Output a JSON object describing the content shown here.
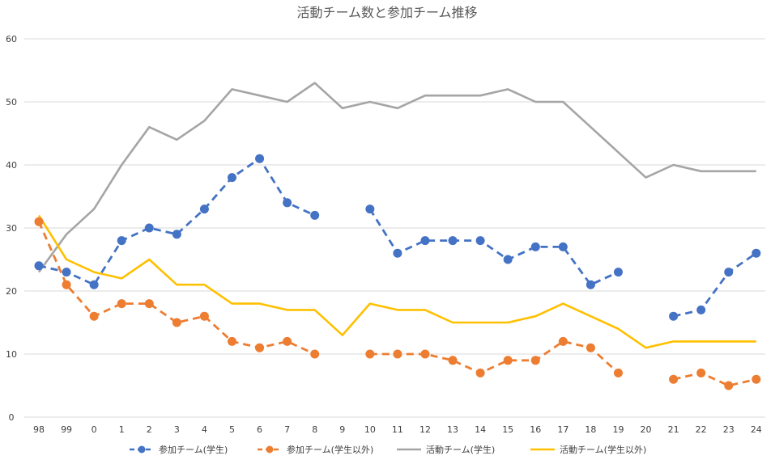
{
  "chart_data": {
    "type": "line",
    "title": "活動チーム数と参加チーム推移",
    "xlabel": "",
    "ylabel": "",
    "ylim": [
      0,
      60
    ],
    "yticks": [
      0,
      10,
      20,
      30,
      40,
      50,
      60
    ],
    "grid": true,
    "legend_position": "bottom",
    "categories": [
      "98",
      "99",
      "0",
      "1",
      "2",
      "3",
      "4",
      "5",
      "6",
      "7",
      "8",
      "9",
      "10",
      "11",
      "12",
      "13",
      "14",
      "15",
      "16",
      "17",
      "18",
      "19",
      "20",
      "21",
      "22",
      "23",
      "24"
    ],
    "series": [
      {
        "name": "参加チーム(学生)",
        "color": "#4472c4",
        "style": "dashed-markers",
        "values": [
          24,
          23,
          21,
          28,
          30,
          29,
          33,
          38,
          41,
          34,
          32,
          null,
          33,
          26,
          28,
          28,
          28,
          25,
          27,
          27,
          21,
          23,
          null,
          16,
          17,
          23,
          26
        ]
      },
      {
        "name": "参加チーム(学生以外)",
        "color": "#ed7d31",
        "style": "dashed-markers",
        "values": [
          31,
          21,
          16,
          18,
          18,
          15,
          16,
          12,
          11,
          12,
          10,
          null,
          10,
          10,
          10,
          9,
          7,
          9,
          9,
          12,
          11,
          7,
          null,
          6,
          7,
          5,
          6
        ]
      },
      {
        "name": "活動チーム(学生)",
        "color": "#a5a5a5",
        "style": "solid",
        "values": [
          23,
          29,
          33,
          40,
          46,
          44,
          47,
          52,
          51,
          50,
          53,
          49,
          50,
          49,
          51,
          51,
          51,
          52,
          50,
          50,
          46,
          42,
          38,
          40,
          39,
          39,
          39
        ]
      },
      {
        "name": "活動チーム(学生以外)",
        "color": "#ffc000",
        "style": "solid",
        "values": [
          32,
          25,
          23,
          22,
          25,
          21,
          21,
          18,
          18,
          17,
          17,
          13,
          18,
          17,
          17,
          15,
          15,
          15,
          16,
          18,
          16,
          14,
          11,
          12,
          12,
          12,
          12
        ]
      }
    ]
  }
}
